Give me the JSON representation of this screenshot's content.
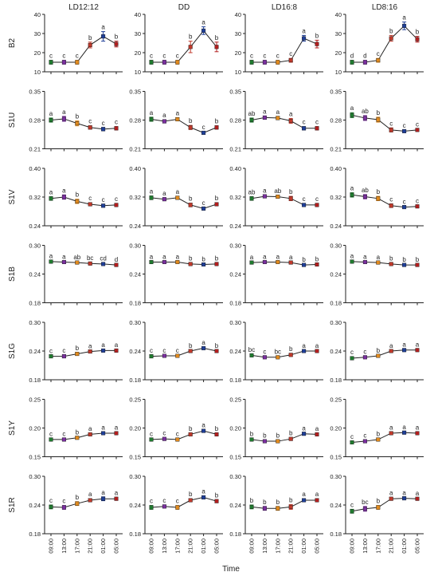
{
  "figure": {
    "x_axis_title": "Time",
    "point_colors": [
      "#1f7a2e",
      "#7b2fa0",
      "#e08a1e",
      "#c0392b",
      "#1f3f99",
      "#b21f1f"
    ]
  },
  "chart_data": {
    "type": "line",
    "columns": [
      "LD12:12",
      "DD",
      "LD16:8",
      "LD8:16"
    ],
    "rows": [
      {
        "label": "B2",
        "ylim": [
          10,
          40
        ],
        "ticks": [
          "10",
          "20",
          "30",
          "40"
        ]
      },
      {
        "label": "S1U",
        "ylim": [
          0.21,
          0.35
        ],
        "ticks": [
          "0.21",
          "0.28",
          "0.35"
        ]
      },
      {
        "label": "S1V",
        "ylim": [
          0.24,
          0.4
        ],
        "ticks": [
          "0.24",
          "0.32",
          "0.40"
        ]
      },
      {
        "label": "S1B",
        "ylim": [
          0.18,
          0.3
        ],
        "ticks": [
          "0.18",
          "0.24",
          "0.30"
        ]
      },
      {
        "label": "S1G",
        "ylim": [
          0.18,
          0.3
        ],
        "ticks": [
          "0.18",
          "0.24",
          "0.30"
        ]
      },
      {
        "label": "S1Y",
        "ylim": [
          0.15,
          0.25
        ],
        "ticks": [
          "0.15",
          "0.20",
          "0.25"
        ]
      },
      {
        "label": "S1R",
        "ylim": [
          0.18,
          0.3
        ],
        "ticks": [
          "0.18",
          "0.24",
          "0.30"
        ]
      }
    ],
    "x_categories": [
      "09:00",
      "13:00",
      "17:00",
      "21:00",
      "01:00",
      "05:00"
    ],
    "panels": [
      [
        {
          "values": [
            15,
            15,
            15,
            24,
            28.5,
            24.5
          ],
          "err": [
            1,
            1,
            1,
            1.5,
            2.5,
            1.5
          ],
          "letters": [
            "c",
            "c",
            "c",
            "b",
            "a",
            "b"
          ]
        },
        {
          "values": [
            15,
            15,
            15,
            23,
            31.5,
            23
          ],
          "err": [
            1,
            1,
            1,
            3,
            2,
            2.5
          ],
          "letters": [
            "c",
            "c",
            "c",
            "b",
            "a",
            "b"
          ]
        },
        {
          "values": [
            15,
            15,
            15,
            16,
            27.5,
            24.5
          ],
          "err": [
            1,
            1,
            1,
            1,
            1.5,
            2
          ],
          "letters": [
            "c",
            "c",
            "c",
            "c",
            "a",
            "b"
          ]
        },
        {
          "values": [
            15,
            15,
            16,
            27.5,
            34,
            27
          ],
          "err": [
            1,
            1,
            1,
            1.5,
            2,
            1.5
          ],
          "letters": [
            "d",
            "d",
            "c",
            "b",
            "a",
            "b"
          ]
        }
      ],
      [
        {
          "values": [
            0.28,
            0.283,
            0.272,
            0.262,
            0.258,
            0.26
          ],
          "err": [
            0.005,
            0.006,
            0.006,
            0.004,
            0.004,
            0.004
          ],
          "letters": [
            "a",
            "a",
            "b",
            "c",
            "c",
            "c"
          ]
        },
        {
          "values": [
            0.282,
            0.277,
            0.282,
            0.262,
            0.249,
            0.262
          ],
          "err": [
            0.005,
            0.004,
            0.004,
            0.005,
            0.003,
            0.004
          ],
          "letters": [
            "a",
            "a",
            "a",
            "b",
            "c",
            "b"
          ]
        },
        {
          "values": [
            0.28,
            0.286,
            0.285,
            0.278,
            0.26,
            0.26
          ],
          "err": [
            0.005,
            0.004,
            0.004,
            0.006,
            0.004,
            0.004
          ],
          "letters": [
            "ab",
            "a",
            "a",
            "a",
            "c",
            "c"
          ]
        },
        {
          "values": [
            0.292,
            0.285,
            0.281,
            0.256,
            0.253,
            0.256
          ],
          "err": [
            0.006,
            0.006,
            0.006,
            0.005,
            0.003,
            0.003
          ],
          "letters": [
            "a",
            "ab",
            "b",
            "c",
            "c",
            "c"
          ]
        }
      ],
      [
        {
          "values": [
            0.316,
            0.32,
            0.308,
            0.3,
            0.296,
            0.298
          ],
          "err": [
            0.005,
            0.006,
            0.006,
            0.004,
            0.004,
            0.004
          ],
          "letters": [
            "a",
            "a",
            "b",
            "c",
            "c",
            "c"
          ]
        },
        {
          "values": [
            0.318,
            0.314,
            0.318,
            0.298,
            0.288,
            0.3
          ],
          "err": [
            0.005,
            0.004,
            0.004,
            0.005,
            0.003,
            0.004
          ],
          "letters": [
            "a",
            "a",
            "a",
            "b",
            "c",
            "b"
          ]
        },
        {
          "values": [
            0.316,
            0.322,
            0.321,
            0.316,
            0.298,
            0.298
          ],
          "err": [
            0.005,
            0.004,
            0.004,
            0.006,
            0.004,
            0.004
          ],
          "letters": [
            "ab",
            "a",
            "ab",
            "b",
            "c",
            "c"
          ]
        },
        {
          "values": [
            0.326,
            0.321,
            0.316,
            0.296,
            0.292,
            0.294
          ],
          "err": [
            0.006,
            0.006,
            0.006,
            0.005,
            0.003,
            0.003
          ],
          "letters": [
            "a",
            "ab",
            "b",
            "c",
            "c",
            "c"
          ]
        }
      ],
      [
        {
          "values": [
            0.266,
            0.265,
            0.264,
            0.262,
            0.261,
            0.259
          ],
          "err": [
            0.002,
            0.002,
            0.002,
            0.002,
            0.002,
            0.002
          ],
          "letters": [
            "a",
            "a",
            "ab",
            "bc",
            "cd",
            "d"
          ]
        },
        {
          "values": [
            0.265,
            0.265,
            0.265,
            0.261,
            0.26,
            0.261
          ],
          "err": [
            0.002,
            0.002,
            0.002,
            0.002,
            0.002,
            0.002
          ],
          "letters": [
            "a",
            "a",
            "a",
            "b",
            "b",
            "b"
          ]
        },
        {
          "values": [
            0.264,
            0.265,
            0.265,
            0.264,
            0.259,
            0.26
          ],
          "err": [
            0.002,
            0.002,
            0.002,
            0.002,
            0.002,
            0.002
          ],
          "letters": [
            "a",
            "a",
            "a",
            "a",
            "b",
            "b"
          ]
        },
        {
          "values": [
            0.266,
            0.265,
            0.264,
            0.261,
            0.259,
            0.259
          ],
          "err": [
            0.002,
            0.002,
            0.002,
            0.002,
            0.002,
            0.002
          ],
          "letters": [
            "a",
            "a",
            "a",
            "b",
            "b",
            "b"
          ]
        }
      ],
      [
        {
          "values": [
            0.229,
            0.229,
            0.234,
            0.239,
            0.241,
            0.241
          ],
          "err": [
            0.002,
            0.003,
            0.003,
            0.002,
            0.002,
            0.002
          ],
          "letters": [
            "c",
            "c",
            "b",
            "a",
            "a",
            "a"
          ]
        },
        {
          "values": [
            0.229,
            0.23,
            0.23,
            0.24,
            0.246,
            0.24
          ],
          "err": [
            0.003,
            0.002,
            0.002,
            0.002,
            0.002,
            0.002
          ],
          "letters": [
            "c",
            "c",
            "c",
            "b",
            "a",
            "b"
          ]
        },
        {
          "values": [
            0.231,
            0.227,
            0.227,
            0.232,
            0.24,
            0.24
          ],
          "err": [
            0.002,
            0.002,
            0.002,
            0.003,
            0.002,
            0.002
          ],
          "letters": [
            "bc",
            "c",
            "bc",
            "b",
            "a",
            "a"
          ]
        },
        {
          "values": [
            0.225,
            0.227,
            0.23,
            0.24,
            0.242,
            0.242
          ],
          "err": [
            0.003,
            0.002,
            0.002,
            0.002,
            0.002,
            0.002
          ],
          "letters": [
            "c",
            "c",
            "b",
            "a",
            "a",
            "a"
          ]
        }
      ],
      [
        {
          "values": [
            0.18,
            0.18,
            0.183,
            0.189,
            0.191,
            0.191
          ],
          "err": [
            0.002,
            0.002,
            0.002,
            0.002,
            0.002,
            0.002
          ],
          "letters": [
            "c",
            "c",
            "b",
            "a",
            "a",
            "a"
          ]
        },
        {
          "values": [
            0.18,
            0.181,
            0.18,
            0.189,
            0.195,
            0.189
          ],
          "err": [
            0.002,
            0.002,
            0.002,
            0.002,
            0.002,
            0.002
          ],
          "letters": [
            "c",
            "c",
            "c",
            "b",
            "a",
            "b"
          ]
        },
        {
          "values": [
            0.18,
            0.177,
            0.177,
            0.181,
            0.19,
            0.189
          ],
          "err": [
            0.002,
            0.002,
            0.002,
            0.002,
            0.002,
            0.002
          ],
          "letters": [
            "b",
            "b",
            "b",
            "b",
            "a",
            "a"
          ]
        },
        {
          "values": [
            0.175,
            0.177,
            0.18,
            0.191,
            0.192,
            0.191
          ],
          "err": [
            0.002,
            0.002,
            0.002,
            0.002,
            0.002,
            0.002
          ],
          "letters": [
            "c",
            "c",
            "b",
            "a",
            "a",
            "a"
          ]
        }
      ],
      [
        {
          "values": [
            0.236,
            0.235,
            0.243,
            0.25,
            0.253,
            0.253
          ],
          "err": [
            0.004,
            0.004,
            0.004,
            0.003,
            0.004,
            0.003
          ],
          "letters": [
            "c",
            "c",
            "b",
            "a",
            "a",
            "a"
          ]
        },
        {
          "values": [
            0.235,
            0.237,
            0.235,
            0.25,
            0.256,
            0.248
          ],
          "err": [
            0.004,
            0.003,
            0.004,
            0.003,
            0.003,
            0.003
          ],
          "letters": [
            "c",
            "c",
            "c",
            "b",
            "a",
            "b"
          ]
        },
        {
          "values": [
            0.236,
            0.233,
            0.233,
            0.236,
            0.25,
            0.25
          ],
          "err": [
            0.004,
            0.004,
            0.004,
            0.005,
            0.003,
            0.003
          ],
          "letters": [
            "b",
            "b",
            "b",
            "b",
            "a",
            "a"
          ]
        },
        {
          "values": [
            0.227,
            0.232,
            0.235,
            0.253,
            0.254,
            0.253
          ],
          "err": [
            0.004,
            0.005,
            0.004,
            0.003,
            0.002,
            0.002
          ],
          "letters": [
            "c",
            "bc",
            "b",
            "a",
            "a",
            "a"
          ]
        }
      ]
    ]
  }
}
